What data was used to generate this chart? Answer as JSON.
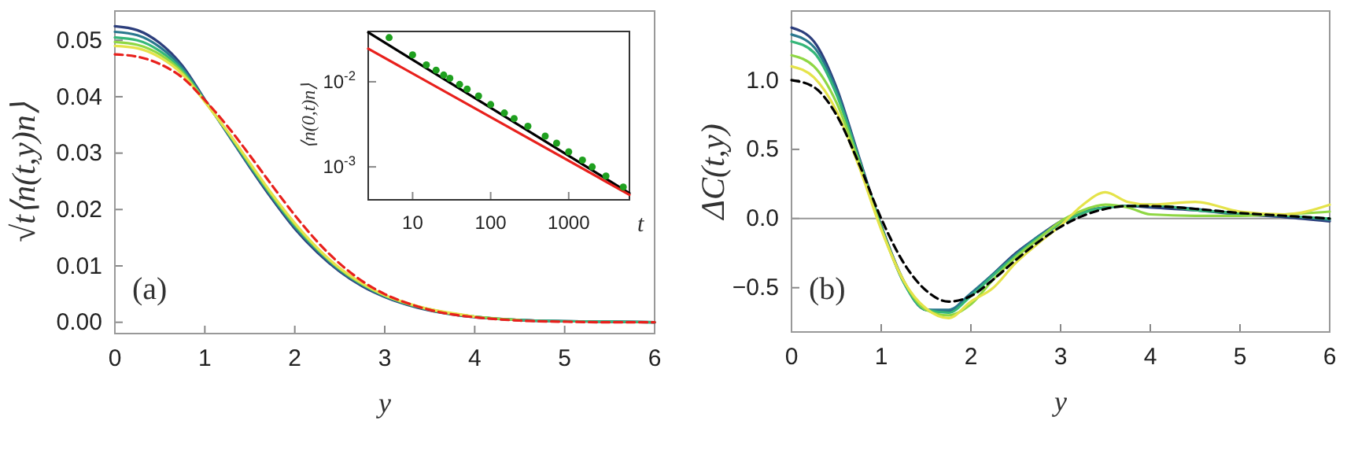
{
  "chart_data": [
    {
      "type": "line",
      "xlabel": "y",
      "ylabel": "√t⟨n(t,y)n⟩",
      "annotations": [
        "(a)"
      ],
      "xlim": [
        0,
        6
      ],
      "ylim": [
        -0.002,
        0.0552
      ],
      "xticks": [
        0,
        1,
        2,
        3,
        4,
        5,
        6
      ],
      "yticks": [
        {
          "value": 0,
          "label": "0.00"
        },
        {
          "value": 0.01,
          "label": "0.01"
        },
        {
          "value": 0.02,
          "label": "0.02"
        },
        {
          "value": 0.03,
          "label": "0.03"
        },
        {
          "value": 0.04,
          "label": "0.04"
        },
        {
          "value": 0.05,
          "label": "0.05"
        }
      ],
      "grid": false,
      "x": [
        0,
        0.25,
        0.5,
        0.75,
        1,
        1.25,
        1.5,
        1.75,
        2,
        2.25,
        2.5,
        2.75,
        3,
        3.25,
        3.5,
        3.75,
        4,
        4.5,
        5,
        5.5,
        6
      ],
      "series": [
        {
          "color": "#2c3e7c",
          "values": [
            0.0525,
            0.0518,
            0.0495,
            0.0455,
            0.0395,
            0.0335,
            0.0275,
            0.0218,
            0.0166,
            0.0124,
            0.009,
            0.0064,
            0.0045,
            0.0031,
            0.0021,
            0.0014,
            0.0009,
            0.0004,
            0.0002,
            0.0001,
            0.0
          ]
        },
        {
          "color": "#2a788e",
          "values": [
            0.0515,
            0.0509,
            0.0488,
            0.0451,
            0.0394,
            0.0336,
            0.0277,
            0.0221,
            0.0169,
            0.0127,
            0.0092,
            0.0066,
            0.0046,
            0.0032,
            0.0022,
            0.0015,
            0.001,
            0.0004,
            0.0002,
            0.0001,
            0.0
          ]
        },
        {
          "color": "#35b779",
          "values": [
            0.0505,
            0.05,
            0.0481,
            0.0447,
            0.0393,
            0.0337,
            0.0279,
            0.0223,
            0.0172,
            0.0129,
            0.0094,
            0.0067,
            0.0047,
            0.0033,
            0.0022,
            0.0015,
            0.001,
            0.0004,
            0.0002,
            0.0001,
            0.0
          ]
        },
        {
          "color": "#8fd744",
          "values": [
            0.0497,
            0.0492,
            0.0475,
            0.0443,
            0.0392,
            0.0338,
            0.0281,
            0.0225,
            0.0174,
            0.0131,
            0.0095,
            0.0068,
            0.0048,
            0.0033,
            0.0023,
            0.0015,
            0.001,
            0.0004,
            null,
            null,
            null
          ]
        },
        {
          "color": "#e5e34a",
          "values": [
            0.049,
            0.0486,
            0.047,
            0.044,
            0.0391,
            0.0339,
            0.0283,
            0.0227,
            0.0176,
            0.0132,
            0.0096,
            0.0069,
            0.0048,
            0.0034,
            0.0023,
            0.0016,
            0.001,
            null,
            null,
            null,
            null
          ]
        },
        {
          "color": "#e8201c",
          "line_style": "dashed",
          "values": [
            0.0475,
            0.0471,
            0.0458,
            0.0434,
            0.0394,
            0.0348,
            0.0296,
            0.0242,
            0.019,
            0.0143,
            0.0104,
            0.0073,
            0.005,
            0.0034,
            0.0022,
            0.0014,
            0.0009,
            0.0003,
            0.0001,
            0.0,
            0.0
          ]
        }
      ]
    },
    {
      "type": "line",
      "xlabel": "t",
      "ylabel": "⟨n(0,t)n⟩",
      "log": "xy",
      "xlim": [
        2.7,
        6000
      ],
      "ylim": [
        0.00041,
        0.039
      ],
      "xticks": [
        10,
        100,
        1000
      ],
      "yticks": [
        {
          "value": 0.01,
          "label": "10$^{-2}$"
        },
        {
          "value": 0.001,
          "label": "10$^{-3}$"
        }
      ],
      "grid": false,
      "series": [
        {
          "color": "#000000",
          "x": [
            2.7,
            6000
          ],
          "values": [
            0.038,
            0.00049
          ]
        },
        {
          "color": "#e8201c",
          "x": [
            2.7,
            6000
          ],
          "values": [
            0.0245,
            0.00047
          ]
        },
        {
          "type": "scatter",
          "marker": "circle",
          "color": "#1fa01f",
          "x": [
            5,
            10,
            15,
            20,
            25,
            30,
            40,
            50,
            70,
            100,
            150,
            200,
            300,
            500,
            700,
            1000,
            1500,
            2000,
            3000,
            5000
          ],
          "values": [
            0.033,
            0.0207,
            0.0158,
            0.0137,
            0.012,
            0.011,
            0.0093,
            0.0082,
            0.0068,
            0.0054,
            0.0043,
            0.0037,
            0.003,
            0.0023,
            0.0019,
            0.0015,
            0.0012,
            0.001,
            0.00078,
            0.00058
          ]
        }
      ]
    },
    {
      "type": "line",
      "xlabel": "y",
      "ylabel": "ΔC(t,y)",
      "annotations": [
        "(b)"
      ],
      "xlim": [
        0,
        6
      ],
      "ylim": [
        -0.82,
        1.5
      ],
      "xticks": [
        0,
        1,
        2,
        3,
        4,
        5,
        6
      ],
      "yticks": [
        {
          "value": -0.5,
          "label": "−0.5"
        },
        {
          "value": 0,
          "label": "0.0"
        },
        {
          "value": 0.5,
          "label": "0.5"
        },
        {
          "value": 1,
          "label": "1.0"
        }
      ],
      "grid": false,
      "ref_lines": [
        {
          "axis": "y",
          "value": 0,
          "color": "#999999"
        }
      ],
      "x": [
        0,
        0.25,
        0.5,
        0.75,
        1,
        1.25,
        1.5,
        1.75,
        2,
        2.25,
        2.5,
        2.75,
        3,
        3.25,
        3.5,
        3.75,
        4,
        4.5,
        5,
        5.5,
        6
      ],
      "series": [
        {
          "color": "#2c3e7c",
          "values": [
            1.38,
            1.28,
            0.95,
            0.45,
            -0.05,
            -0.45,
            -0.66,
            -0.67,
            -0.55,
            -0.4,
            -0.25,
            -0.13,
            -0.02,
            0.05,
            0.08,
            0.09,
            0.08,
            0.06,
            0.03,
            0.01,
            -0.02
          ]
        },
        {
          "color": "#2a788e",
          "values": [
            1.33,
            1.24,
            0.93,
            0.44,
            -0.06,
            -0.46,
            -0.66,
            -0.66,
            -0.54,
            -0.4,
            -0.26,
            -0.13,
            -0.03,
            0.05,
            0.08,
            0.09,
            0.09,
            0.07,
            0.03,
            0.02,
            -0.01
          ]
        },
        {
          "color": "#35b779",
          "values": [
            1.28,
            1.2,
            0.9,
            0.43,
            -0.06,
            -0.46,
            -0.66,
            -0.68,
            -0.56,
            -0.41,
            -0.27,
            -0.14,
            -0.04,
            0.04,
            0.08,
            0.09,
            0.1,
            0.06,
            0.04,
            0.02,
            0.0
          ]
        },
        {
          "color": "#8fd744",
          "values": [
            1.18,
            1.1,
            0.84,
            0.41,
            -0.07,
            -0.45,
            -0.66,
            -0.7,
            -0.62,
            -0.44,
            -0.28,
            -0.15,
            -0.02,
            0.06,
            0.1,
            0.08,
            0.03,
            0.02,
            0.02,
            0.03,
            0.05
          ]
        },
        {
          "color": "#e5e34a",
          "values": [
            1.1,
            1.02,
            0.78,
            0.38,
            -0.08,
            -0.45,
            -0.65,
            -0.72,
            -0.6,
            -0.5,
            -0.32,
            -0.18,
            -0.05,
            0.1,
            0.19,
            0.12,
            0.1,
            0.12,
            0.05,
            0.03,
            0.1
          ]
        },
        {
          "color": "#000000",
          "line_style": "dashed",
          "values": [
            1.0,
            0.95,
            0.75,
            0.4,
            0.0,
            -0.32,
            -0.52,
            -0.6,
            -0.56,
            -0.44,
            -0.3,
            -0.17,
            -0.06,
            0.02,
            0.07,
            0.09,
            0.09,
            0.07,
            0.04,
            0.02,
            0.0
          ]
        }
      ]
    }
  ]
}
